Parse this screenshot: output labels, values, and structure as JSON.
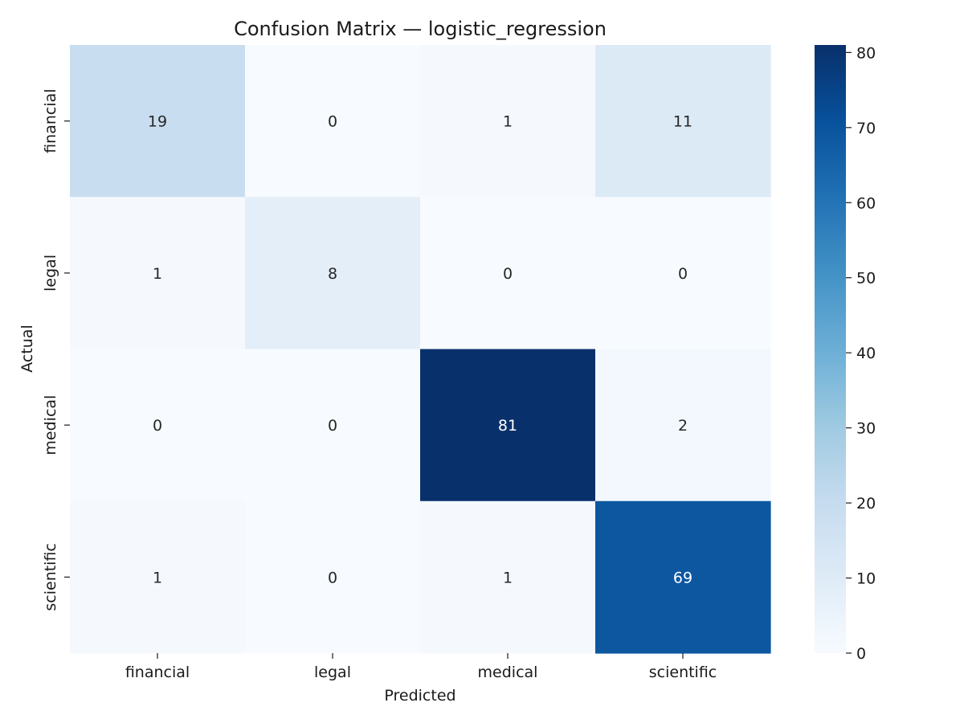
{
  "chart_data": {
    "type": "heatmap",
    "title": "Confusion Matrix — logistic_regression",
    "xlabel": "Predicted",
    "ylabel": "Actual",
    "x_categories": [
      "financial",
      "legal",
      "medical",
      "scientific"
    ],
    "y_categories": [
      "financial",
      "legal",
      "medical",
      "scientific"
    ],
    "values": [
      [
        19,
        0,
        1,
        11
      ],
      [
        1,
        8,
        0,
        0
      ],
      [
        0,
        0,
        81,
        2
      ],
      [
        1,
        0,
        1,
        69
      ]
    ],
    "colorbar": {
      "colormap": "Blues",
      "range": [
        0,
        81
      ],
      "ticks": [
        0,
        10,
        20,
        30,
        40,
        50,
        60,
        70,
        80
      ]
    },
    "colors": {
      "low": "#f7fbff",
      "high": "#08306b",
      "text_dark": "#262626",
      "text_light": "#ffffff"
    }
  }
}
